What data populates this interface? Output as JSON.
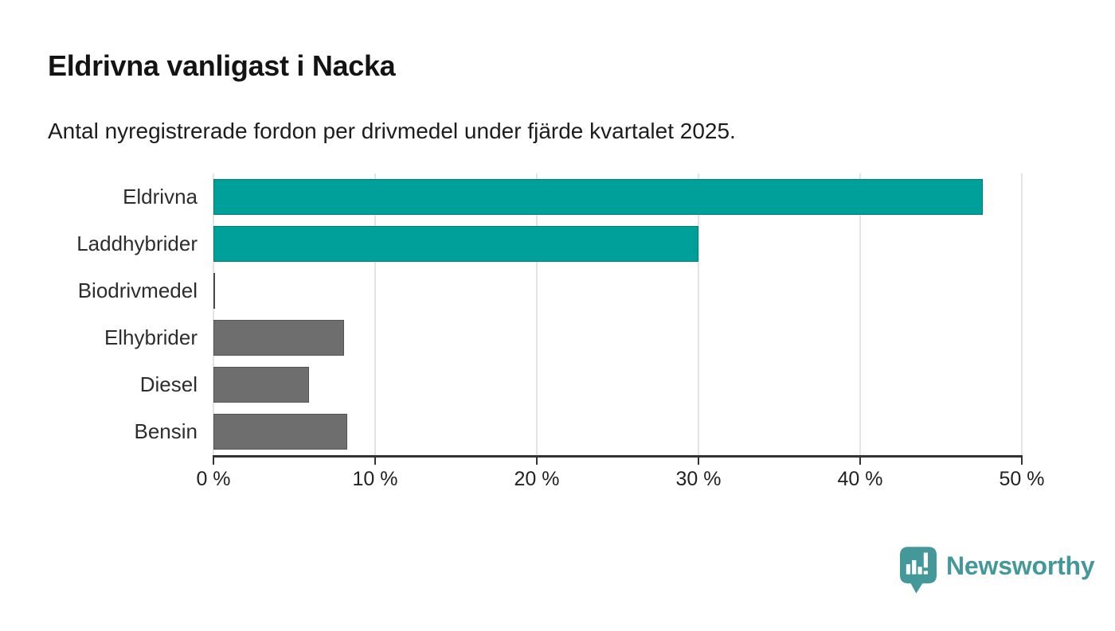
{
  "title": "Eldrivna vanligast i Nacka",
  "subtitle": "Antal nyregistrerade fordon per drivmedel under fjärde kvartalet 2025.",
  "chart_data": {
    "type": "bar",
    "orientation": "horizontal",
    "title": "Eldrivna vanligast i Nacka",
    "subtitle": "Antal nyregistrerade fordon per drivmedel under fjärde kvartalet 2025.",
    "categories": [
      "Eldrivna",
      "Laddhybrider",
      "Biodrivmedel",
      "Elhybrider",
      "Diesel",
      "Bensin"
    ],
    "values": [
      47.6,
      30.0,
      0.1,
      8.1,
      5.9,
      8.3
    ],
    "unit": "%",
    "xlim": [
      0,
      50
    ],
    "x_tick_values": [
      0,
      10,
      20,
      30,
      40,
      50
    ],
    "x_tick_labels": [
      "0 %",
      "10 %",
      "20 %",
      "30 %",
      "40 %",
      "50 %"
    ],
    "grid": "vertical-light",
    "legend": "none",
    "bar_colors": [
      "#00a09a",
      "#00a09a",
      "#4a4a4a",
      "#6e6e6e",
      "#6e6e6e",
      "#6e6e6e"
    ]
  },
  "colors": {
    "accent_teal": "#00a09a",
    "bar_gray": "#6e6e6e",
    "axis": "#333333",
    "gridline": "#e4e4e4",
    "logo_teal": "#44989a",
    "background": "#ffffff"
  },
  "branding": {
    "logo_text": "Newsworthy",
    "logo_icon": "newsworthy-pin-chart-icon"
  }
}
